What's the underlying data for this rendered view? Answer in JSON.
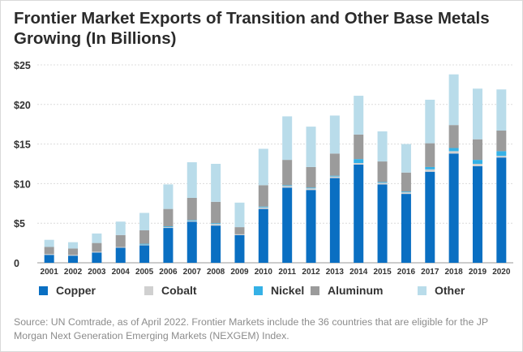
{
  "chart_data": {
    "type": "bar",
    "stacked": true,
    "title": "Frontier Market Exports of Transition and Other Base Metals Growing (In Billions)",
    "xlabel": "",
    "ylabel": "",
    "ylim": [
      0,
      25
    ],
    "yticks": [
      0,
      5,
      10,
      15,
      20,
      25
    ],
    "ytick_labels": [
      "0",
      "$5",
      "$10",
      "$15",
      "$20",
      "$25"
    ],
    "grid": true,
    "legend_position": "bottom",
    "categories": [
      "2001",
      "2002",
      "2003",
      "2004",
      "2005",
      "2006",
      "2007",
      "2008",
      "2009",
      "2010",
      "2011",
      "2012",
      "2013",
      "2014",
      "2015",
      "2016",
      "2017",
      "2018",
      "2019",
      "2020"
    ],
    "series": [
      {
        "name": "Copper",
        "color": "#0a6fc2",
        "values": [
          1.0,
          0.9,
          1.3,
          1.9,
          2.2,
          4.4,
          5.2,
          4.7,
          3.5,
          6.8,
          9.5,
          9.2,
          10.7,
          12.4,
          9.9,
          8.7,
          11.5,
          13.8,
          12.2,
          13.3
        ]
      },
      {
        "name": "Cobalt",
        "color": "#d0d0d0",
        "values": [
          0.1,
          0.1,
          0.1,
          0.1,
          0.1,
          0.1,
          0.1,
          0.2,
          0.1,
          0.2,
          0.2,
          0.2,
          0.2,
          0.2,
          0.2,
          0.2,
          0.3,
          0.3,
          0.3,
          0.2
        ]
      },
      {
        "name": "Nickel",
        "color": "#35b1e6",
        "values": [
          0.0,
          0.0,
          0.0,
          0.0,
          0.1,
          0.1,
          0.1,
          0.1,
          0.0,
          0.1,
          0.1,
          0.1,
          0.1,
          0.5,
          0.1,
          0.1,
          0.3,
          0.4,
          0.5,
          0.6
        ]
      },
      {
        "name": "Aluminum",
        "color": "#9b9b9b",
        "values": [
          0.9,
          0.8,
          1.1,
          1.5,
          1.7,
          2.2,
          2.8,
          2.7,
          0.9,
          2.7,
          3.2,
          2.6,
          2.8,
          3.1,
          2.6,
          2.4,
          3.0,
          2.9,
          2.6,
          2.6
        ]
      },
      {
        "name": "Other",
        "color": "#b9dcea",
        "values": [
          0.9,
          0.8,
          1.2,
          1.7,
          2.2,
          3.1,
          4.5,
          4.8,
          3.1,
          4.6,
          5.5,
          5.1,
          4.8,
          4.9,
          3.8,
          3.6,
          5.5,
          6.4,
          6.4,
          5.2
        ]
      }
    ]
  },
  "source_note": "Source: UN Comtrade, as of April 2022. Frontier Markets include the 36 countries that are eligible for the JP Morgan Next Generation Emerging Markets (NEXGEM) Index."
}
